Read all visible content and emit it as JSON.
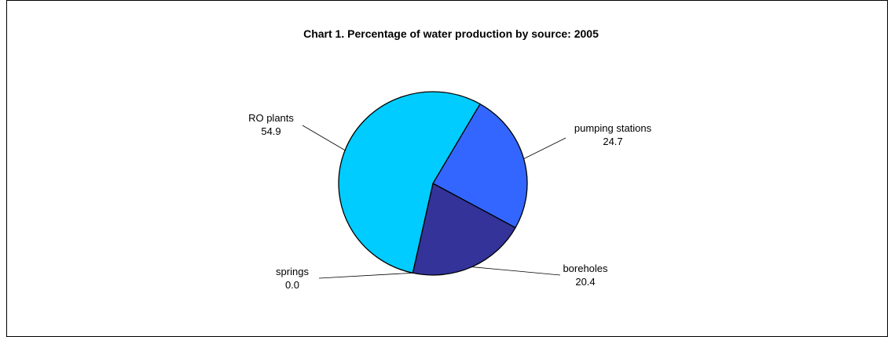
{
  "chart_data": {
    "type": "pie",
    "title": "Chart 1.  Percentage of water production by source: 2005",
    "slices": [
      {
        "name": "pumping stations",
        "value": 24.7,
        "label_value": "24.7",
        "color": "#3366FF"
      },
      {
        "name": "boreholes",
        "value": 20.4,
        "label_value": "20.4",
        "color": "#333399"
      },
      {
        "name": "springs",
        "value": 0.0,
        "label_value": "0.0",
        "color": "#000080"
      },
      {
        "name": "RO plants",
        "value": 54.9,
        "label_value": "54.9",
        "color": "#00CCFF"
      }
    ],
    "legend": "none",
    "data_labels": "category name and value"
  }
}
